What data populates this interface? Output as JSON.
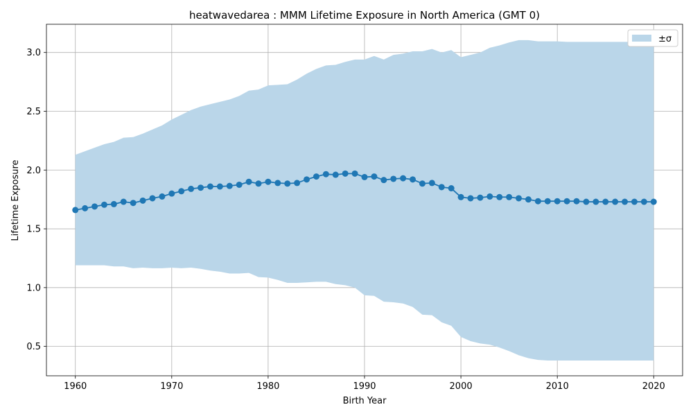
{
  "chart_data": {
    "type": "line",
    "title": "heatwavedarea : MMM Lifetime Exposure in North America (GMT 0)",
    "xlabel": "Birth Year",
    "ylabel": "Lifetime Exposure",
    "xlim": [
      1957,
      2023
    ],
    "ylim": [
      0.25,
      3.24
    ],
    "xticks": [
      1960,
      1970,
      1980,
      1990,
      2000,
      2010,
      2020
    ],
    "yticks": [
      0.5,
      1.0,
      1.5,
      2.0,
      2.5,
      3.0
    ],
    "xtick_labels": [
      "1960",
      "1970",
      "1980",
      "1990",
      "2000",
      "2010",
      "2020"
    ],
    "ytick_labels": [
      "0.5",
      "1.0",
      "1.5",
      "2.0",
      "2.5",
      "3.0"
    ],
    "grid": true,
    "legend": {
      "placement": "top-right",
      "entries": [
        "±σ"
      ]
    },
    "colors": {
      "line": "#1f77b4",
      "band": "#bad6e9"
    },
    "x": [
      1960,
      1961,
      1962,
      1963,
      1964,
      1965,
      1966,
      1967,
      1968,
      1969,
      1970,
      1971,
      1972,
      1973,
      1974,
      1975,
      1976,
      1977,
      1978,
      1979,
      1980,
      1981,
      1982,
      1983,
      1984,
      1985,
      1986,
      1987,
      1988,
      1989,
      1990,
      1991,
      1992,
      1993,
      1994,
      1995,
      1996,
      1997,
      1998,
      1999,
      2000,
      2001,
      2002,
      2003,
      2004,
      2005,
      2006,
      2007,
      2008,
      2009,
      2010,
      2011,
      2012,
      2013,
      2014,
      2015,
      2016,
      2017,
      2018,
      2019,
      2020
    ],
    "series": [
      {
        "kind": "mean",
        "values": [
          1.66,
          1.675,
          1.69,
          1.705,
          1.71,
          1.73,
          1.72,
          1.74,
          1.76,
          1.775,
          1.8,
          1.82,
          1.84,
          1.85,
          1.86,
          1.86,
          1.865,
          1.875,
          1.9,
          1.885,
          1.9,
          1.89,
          1.885,
          1.89,
          1.92,
          1.945,
          1.965,
          1.96,
          1.97,
          1.97,
          1.94,
          1.945,
          1.915,
          1.925,
          1.93,
          1.92,
          1.885,
          1.89,
          1.855,
          1.845,
          1.77,
          1.76,
          1.765,
          1.775,
          1.77,
          1.77,
          1.76,
          1.75,
          1.735,
          1.735,
          1.735,
          1.735,
          1.735,
          1.73,
          1.73,
          1.73,
          1.73,
          1.73,
          1.73,
          1.73,
          1.73
        ]
      },
      {
        "kind": "upper",
        "values": [
          2.13,
          2.16,
          2.19,
          2.22,
          2.24,
          2.275,
          2.28,
          2.31,
          2.345,
          2.38,
          2.43,
          2.47,
          2.51,
          2.54,
          2.56,
          2.58,
          2.6,
          2.63,
          2.675,
          2.685,
          2.72,
          2.725,
          2.73,
          2.77,
          2.82,
          2.86,
          2.89,
          2.895,
          2.92,
          2.94,
          2.94,
          2.97,
          2.94,
          2.98,
          2.99,
          3.01,
          3.01,
          3.03,
          3.0,
          3.02,
          2.96,
          2.98,
          3.0,
          3.04,
          3.06,
          3.085,
          3.105,
          3.105,
          3.095,
          3.095,
          3.095,
          3.09,
          3.09,
          3.09,
          3.09,
          3.09,
          3.09,
          3.09,
          3.09,
          3.09,
          3.09
        ]
      },
      {
        "kind": "lower",
        "values": [
          1.19,
          1.19,
          1.19,
          1.19,
          1.18,
          1.18,
          1.165,
          1.17,
          1.165,
          1.165,
          1.17,
          1.165,
          1.17,
          1.16,
          1.145,
          1.135,
          1.12,
          1.12,
          1.125,
          1.09,
          1.085,
          1.065,
          1.04,
          1.04,
          1.045,
          1.05,
          1.05,
          1.03,
          1.02,
          1.0,
          0.935,
          0.93,
          0.88,
          0.875,
          0.865,
          0.835,
          0.77,
          0.765,
          0.705,
          0.675,
          0.58,
          0.545,
          0.525,
          0.515,
          0.49,
          0.46,
          0.425,
          0.4,
          0.385,
          0.38,
          0.38,
          0.38,
          0.38,
          0.38,
          0.38,
          0.38,
          0.38,
          0.38,
          0.38,
          0.38,
          0.38
        ]
      }
    ]
  }
}
